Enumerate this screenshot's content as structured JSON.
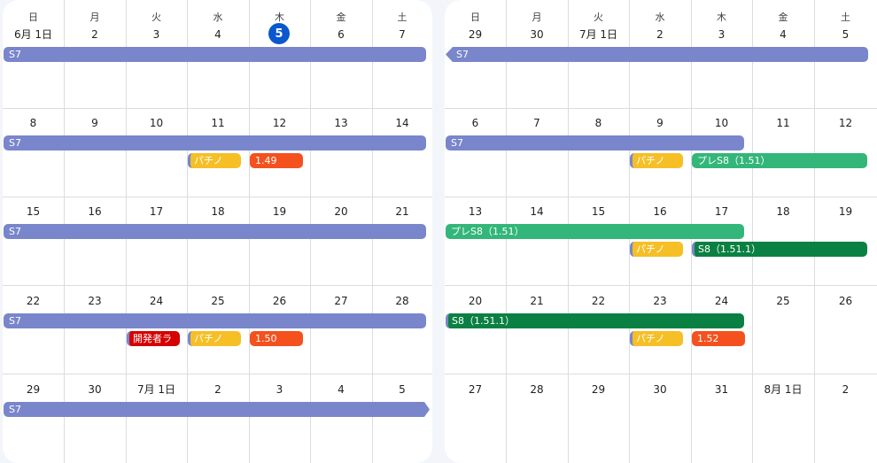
{
  "weekdays": [
    "日",
    "月",
    "火",
    "水",
    "木",
    "金",
    "土"
  ],
  "colors": {
    "s7": "#7986cb",
    "pachino": "#f6bf26",
    "release": "#f4511e",
    "dev": "#d50000",
    "pre_s8": "#33b679",
    "s8": "#0b8043",
    "today": "#0b57d0"
  },
  "june": {
    "weeks": [
      [
        "6月 1日",
        "2",
        "3",
        "4",
        "5",
        "6",
        "7"
      ],
      [
        "8",
        "9",
        "10",
        "11",
        "12",
        "13",
        "14"
      ],
      [
        "15",
        "16",
        "17",
        "18",
        "19",
        "20",
        "21"
      ],
      [
        "22",
        "23",
        "24",
        "25",
        "26",
        "27",
        "28"
      ],
      [
        "29",
        "30",
        "7月 1日",
        "2",
        "3",
        "4",
        "5"
      ]
    ],
    "today": "5",
    "events": {
      "w0_s7": "S7",
      "w1_s7": "S7",
      "w1_pachino": "パチノ",
      "w1_release": "1.49",
      "w2_s7": "S7",
      "w3_s7": "S7",
      "w3_dev": "開発者ラ",
      "w3_pachino": "パチノ",
      "w3_release": "1.50",
      "w4_s7": "S7"
    }
  },
  "july": {
    "weeks": [
      [
        "29",
        "30",
        "7月 1日",
        "2",
        "3",
        "4",
        "5"
      ],
      [
        "6",
        "7",
        "8",
        "9",
        "10",
        "11",
        "12"
      ],
      [
        "13",
        "14",
        "15",
        "16",
        "17",
        "18",
        "19"
      ],
      [
        "20",
        "21",
        "22",
        "23",
        "24",
        "25",
        "26"
      ],
      [
        "27",
        "28",
        "29",
        "30",
        "31",
        "8月 1日",
        "2"
      ]
    ],
    "events": {
      "w0_s7": "S7",
      "w1_s7": "S7",
      "w1_pachino": "パチノ",
      "w1_pre_s8": "プレS8（1.51）",
      "w2_pre_s8": "プレS8（1.51）",
      "w2_pachino": "パチノ",
      "w2_s8": "S8（1.51.1）",
      "w3_s8": "S8（1.51.1）",
      "w3_pachino": "パチノ",
      "w3_release": "1.52"
    }
  }
}
